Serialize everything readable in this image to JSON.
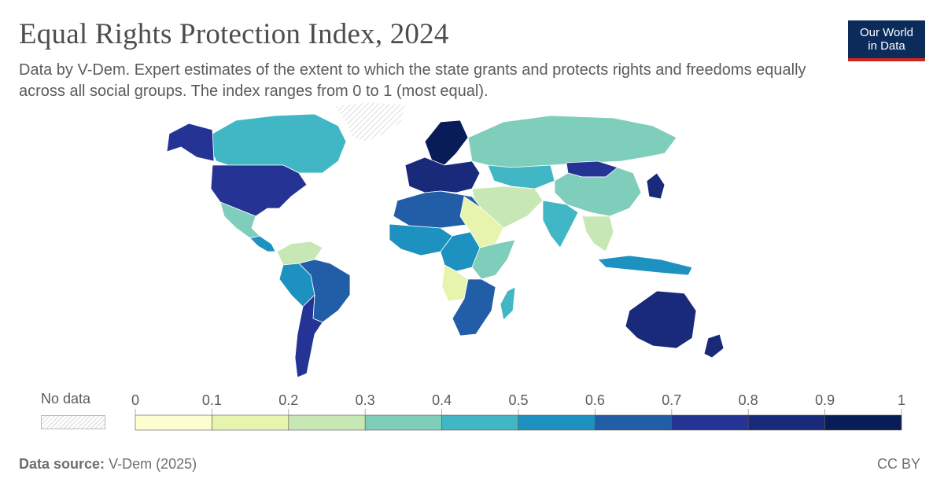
{
  "header": {
    "title": "Equal Rights Protection Index, 2024",
    "subtitle": "Data by V-Dem. Expert estimates of the extent to which the state grants and protects rights and freedoms equally across all social groups. The index ranges from 0 to 1 (most equal)."
  },
  "logo": {
    "line1": "Our World",
    "line2": "in Data"
  },
  "legend": {
    "no_data_label": "No data",
    "ticks": [
      "0",
      "0.1",
      "0.2",
      "0.3",
      "0.4",
      "0.5",
      "0.6",
      "0.7",
      "0.8",
      "0.9",
      "1"
    ],
    "colors": [
      "#fdfdd0",
      "#e6f4ad",
      "#c7e8b4",
      "#7fcdbb",
      "#41b6c4",
      "#1d91c0",
      "#225ea8",
      "#253494",
      "#1a2a7a",
      "#081d58"
    ]
  },
  "footer": {
    "source_label": "Data source:",
    "source_value": "V-Dem (2025)",
    "license": "CC BY"
  },
  "map_regions": [
    {
      "name": "canada",
      "value": 0.45
    },
    {
      "name": "united-states",
      "value": 0.75
    },
    {
      "name": "alaska",
      "value": 0.75
    },
    {
      "name": "greenland",
      "value": null
    },
    {
      "name": "mexico",
      "value": 0.35
    },
    {
      "name": "central-america",
      "value": 0.5
    },
    {
      "name": "colombia-venezuela",
      "value": 0.2
    },
    {
      "name": "brazil",
      "value": 0.65
    },
    {
      "name": "peru-bolivia",
      "value": 0.55
    },
    {
      "name": "argentina-chile",
      "value": 0.7
    },
    {
      "name": "western-europe",
      "value": 0.85
    },
    {
      "name": "scandinavia",
      "value": 0.9
    },
    {
      "name": "russia",
      "value": 0.35
    },
    {
      "name": "kazakhstan",
      "value": 0.45
    },
    {
      "name": "mongolia",
      "value": 0.75
    },
    {
      "name": "china",
      "value": 0.3
    },
    {
      "name": "middle-east",
      "value": 0.25
    },
    {
      "name": "india",
      "value": 0.45
    },
    {
      "name": "southeast-asia",
      "value": 0.25
    },
    {
      "name": "japan",
      "value": 0.85
    },
    {
      "name": "north-africa",
      "value": 0.65
    },
    {
      "name": "sahel-east",
      "value": 0.15
    },
    {
      "name": "west-africa",
      "value": 0.55
    },
    {
      "name": "central-africa",
      "value": 0.5
    },
    {
      "name": "east-africa",
      "value": 0.35
    },
    {
      "name": "angola-congo",
      "value": 0.1
    },
    {
      "name": "southern-africa",
      "value": 0.6
    },
    {
      "name": "madagascar",
      "value": 0.4
    },
    {
      "name": "indonesia",
      "value": 0.5
    },
    {
      "name": "australia",
      "value": 0.8
    },
    {
      "name": "new-zealand",
      "value": 0.85
    }
  ]
}
